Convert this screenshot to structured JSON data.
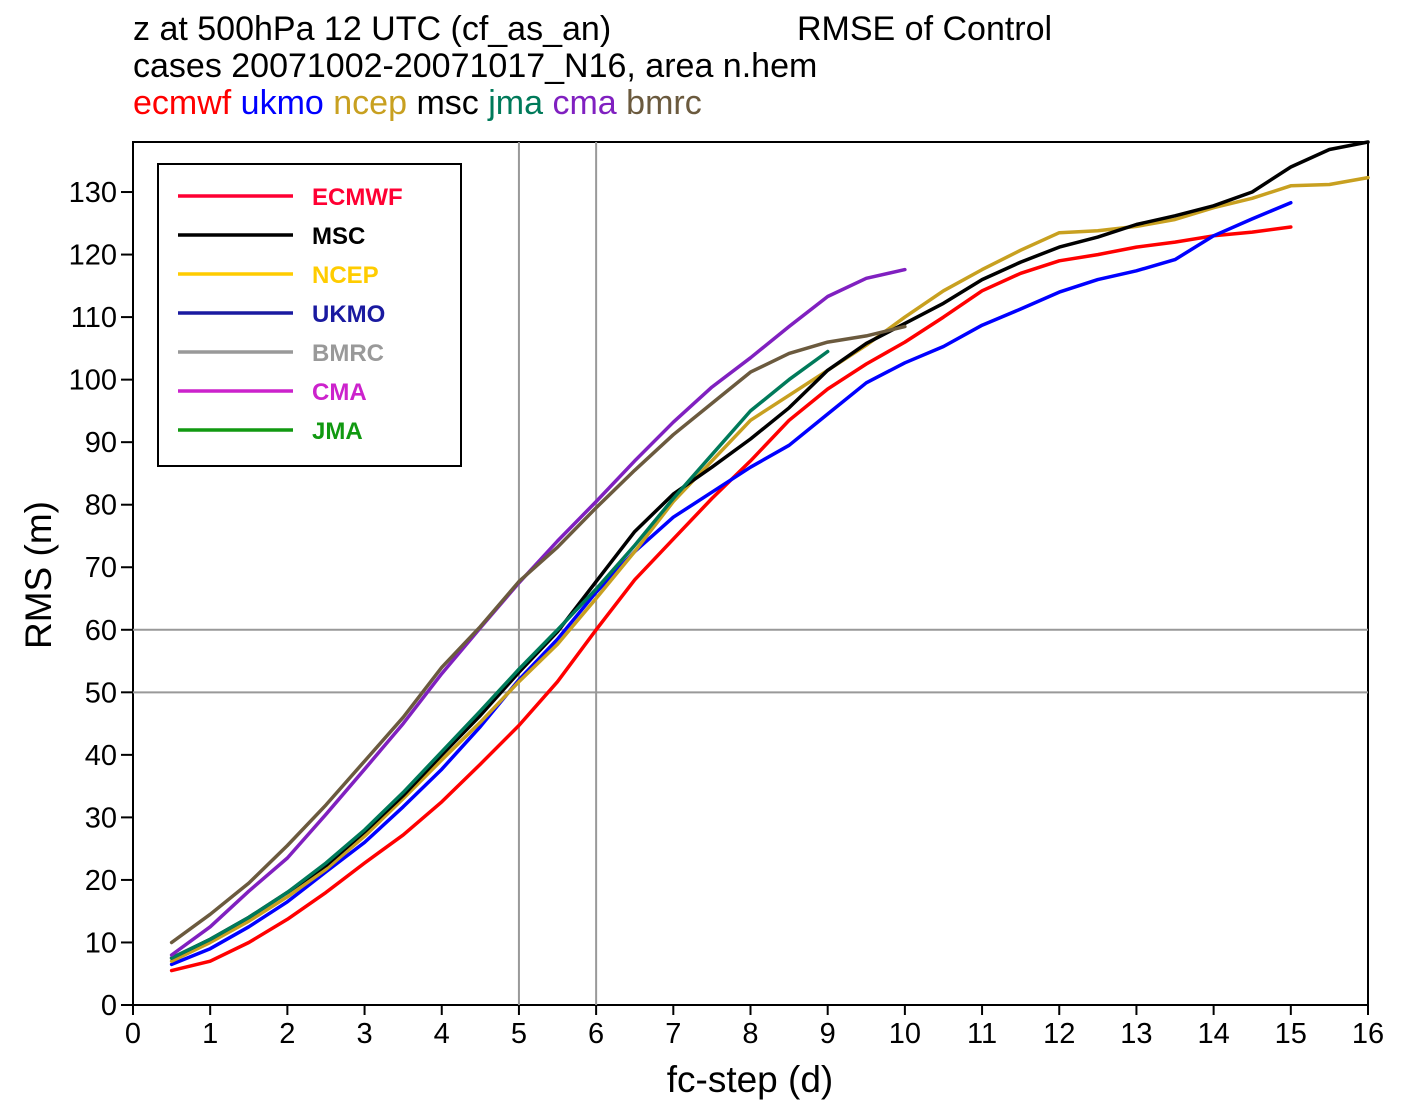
{
  "title": {
    "line1_left": "z at 500hPa 12 UTC (cf_as_an)",
    "line1_right": "RMSE of Control",
    "line2": "cases 20071002-20071017_N16, area n.hem",
    "line3": [
      {
        "text": "ecmwf",
        "color": "#ff0000"
      },
      {
        "text": "ukmo",
        "color": "#0000ff"
      },
      {
        "text": "ncep",
        "color": "#c8a020"
      },
      {
        "text": "msc",
        "color": "#000000"
      },
      {
        "text": "jma",
        "color": "#007a5a"
      },
      {
        "text": "cma",
        "color": "#8020c0"
      },
      {
        "text": "bmrc",
        "color": "#6b5a3e"
      }
    ]
  },
  "chart_data": {
    "type": "line",
    "xlabel": "fc-step (d)",
    "ylabel": "RMS (m)",
    "xlim": [
      0,
      16
    ],
    "ylim": [
      0,
      138
    ],
    "xticks": [
      0,
      1,
      2,
      3,
      4,
      5,
      6,
      7,
      8,
      9,
      10,
      11,
      12,
      13,
      14,
      15,
      16
    ],
    "yticks": [
      0,
      10,
      20,
      30,
      40,
      50,
      60,
      70,
      80,
      90,
      100,
      110,
      120,
      130
    ],
    "reference_lines": {
      "vertical": [
        5,
        6
      ],
      "horizontal": [
        50,
        60
      ],
      "color": "#999999"
    },
    "legend": {
      "placement": "top-left",
      "entries": [
        {
          "label": "ECMWF",
          "color": "#ff0033"
        },
        {
          "label": "MSC",
          "color": "#000000"
        },
        {
          "label": "NCEP",
          "color": "#ffcc00"
        },
        {
          "label": "UKMO",
          "color": "#1a1aa0"
        },
        {
          "label": "BMRC",
          "color": "#999999"
        },
        {
          "label": "CMA",
          "color": "#cc22cc"
        },
        {
          "label": "JMA",
          "color": "#119911"
        }
      ]
    },
    "series": [
      {
        "name": "ecmwf",
        "color": "#ff0000",
        "x": [
          0.5,
          1,
          1.5,
          2,
          2.5,
          3,
          3.5,
          4,
          4.5,
          5,
          5.5,
          6,
          6.5,
          7,
          7.5,
          8,
          8.5,
          9,
          9.5,
          10,
          10.5,
          11,
          11.5,
          12,
          12.5,
          13,
          13.5,
          14,
          14.5,
          15
        ],
        "y": [
          5.5,
          7,
          10,
          13.7,
          18,
          22.7,
          27.2,
          32.5,
          38.5,
          44.7,
          51.7,
          60,
          68,
          74.5,
          81,
          87,
          93.5,
          98.5,
          102.5,
          106,
          110,
          114.2,
          117,
          119,
          120,
          121.2,
          122,
          123,
          123.6,
          124.4
        ]
      },
      {
        "name": "ukmo",
        "color": "#0000ff",
        "x": [
          0.5,
          1,
          1.5,
          2,
          2.5,
          3,
          3.5,
          4,
          4.5,
          5,
          5.5,
          6,
          6.5,
          7,
          7.5,
          8,
          8.5,
          9,
          9.5,
          10,
          10.5,
          11,
          11.5,
          12,
          12.5,
          13,
          13.5,
          14,
          14.5,
          15
        ],
        "y": [
          6.5,
          9,
          12.5,
          16.5,
          21.3,
          26,
          31.7,
          37.7,
          44.5,
          52,
          58.5,
          66,
          72.5,
          78,
          82,
          86,
          89.5,
          94.5,
          99.5,
          102.7,
          105.3,
          108.7,
          111.3,
          114,
          116,
          117.4,
          119.2,
          123,
          125.7,
          128.3
        ]
      },
      {
        "name": "ncep",
        "color": "#c8a020",
        "x": [
          0.5,
          1,
          1.5,
          2,
          2.5,
          3,
          3.5,
          4,
          4.5,
          5,
          5.5,
          6,
          6.5,
          7,
          7.5,
          8,
          8.5,
          9,
          9.5,
          10,
          10.5,
          11,
          11.5,
          12,
          12.5,
          13,
          13.5,
          14,
          14.5,
          15,
          15.5,
          16
        ],
        "y": [
          7,
          10,
          13.4,
          17.3,
          21.7,
          27,
          33,
          39.2,
          45.2,
          51.7,
          57.7,
          65,
          72.5,
          80.5,
          87,
          93.5,
          97.5,
          101.5,
          105.5,
          110,
          114.2,
          117.6,
          120.7,
          123.5,
          123.8,
          124.5,
          125.6,
          127.5,
          129,
          131,
          131.2,
          132.3
        ]
      },
      {
        "name": "msc",
        "color": "#000000",
        "x": [
          0.5,
          1,
          1.5,
          2,
          2.5,
          3,
          3.5,
          4,
          4.5,
          5,
          5.5,
          6,
          6.5,
          7,
          7.5,
          8,
          8.5,
          9,
          9.5,
          10,
          10.5,
          11,
          11.5,
          12,
          12.5,
          13,
          13.5,
          14,
          14.5,
          15,
          15.5,
          16
        ],
        "y": [
          7.5,
          10.5,
          14,
          18,
          22.3,
          27.7,
          33.5,
          40,
          46.3,
          53.2,
          59.7,
          67.7,
          75.7,
          81.7,
          86,
          90.5,
          95.5,
          101.5,
          105.8,
          109,
          112.2,
          116,
          118.8,
          121.2,
          122.8,
          124.8,
          126.2,
          127.8,
          130,
          134,
          136.8,
          138
        ]
      },
      {
        "name": "jma",
        "color": "#007a5a",
        "x": [
          0.5,
          1,
          1.5,
          2,
          2.5,
          3,
          3.5,
          4,
          4.5,
          5,
          5.5,
          6,
          6.5,
          7,
          7.5,
          8,
          8.5,
          9
        ],
        "y": [
          7.5,
          10.5,
          14,
          18,
          22.7,
          28,
          34,
          40.5,
          47,
          53.7,
          60,
          66.5,
          73.5,
          81,
          88,
          95,
          100,
          104.5
        ]
      },
      {
        "name": "cma",
        "color": "#8020c0",
        "x": [
          0.5,
          1,
          1.5,
          2,
          2.5,
          3,
          3.5,
          4,
          4.5,
          5,
          5.5,
          6,
          6.5,
          7,
          7.5,
          8,
          8.5,
          9,
          9.5,
          10
        ],
        "y": [
          8,
          12.5,
          18.2,
          23.5,
          30.5,
          37.7,
          45,
          53,
          60.3,
          67.5,
          74.2,
          80.5,
          87,
          93.2,
          98.8,
          103.5,
          108.5,
          113.3,
          116.2,
          117.6
        ]
      },
      {
        "name": "bmrc",
        "color": "#6b5a3e",
        "x": [
          0.5,
          1,
          1.5,
          2,
          2.5,
          3,
          3.5,
          4,
          4.5,
          5,
          5.5,
          6,
          6.5,
          7,
          7.5,
          8,
          8.5,
          9,
          9.5,
          10
        ],
        "y": [
          10,
          14.5,
          19.5,
          25.5,
          32,
          39,
          46,
          54,
          60.5,
          67.7,
          73.2,
          79.5,
          85.5,
          91.2,
          96.2,
          101.2,
          104.2,
          106,
          107,
          108.5
        ]
      }
    ]
  }
}
